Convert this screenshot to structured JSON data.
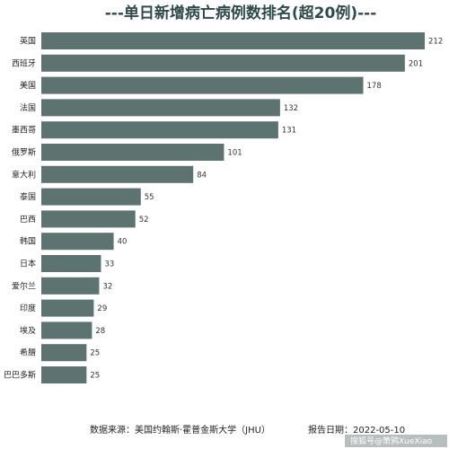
{
  "chart_data": {
    "type": "bar",
    "orientation": "horizontal",
    "title": "---单日新增病亡病例数排名(超20例)---",
    "categories": [
      "英国",
      "西班牙",
      "美国",
      "法国",
      "墨西哥",
      "俄罗斯",
      "意大利",
      "泰国",
      "巴西",
      "韩国",
      "日本",
      "爱尔兰",
      "印度",
      "埃及",
      "希腊",
      "巴巴多斯"
    ],
    "values": [
      212,
      201,
      178,
      132,
      131,
      101,
      84,
      55,
      52,
      40,
      33,
      32,
      29,
      28,
      25,
      25
    ],
    "xlim": [
      0,
      212
    ],
    "bar_color": "#5c7370",
    "grid": false,
    "legend": "none"
  },
  "footer": {
    "source": "数据来源：美国约翰斯·霍普金斯大学（JHU）",
    "date": "报告日期：2022-05-10"
  },
  "watermark": "搜狐号@箫鸦XueXiao"
}
